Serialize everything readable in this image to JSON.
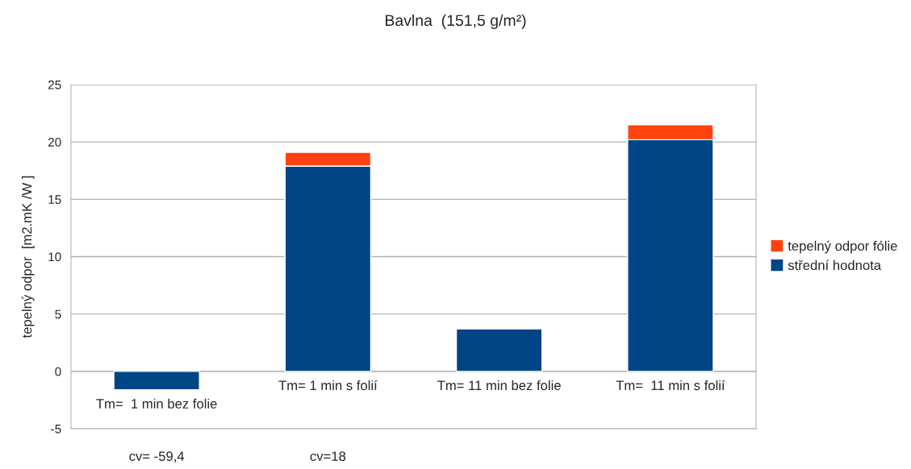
{
  "chart_data": {
    "type": "bar",
    "title": "Bavlna  (151,5 g/m²)",
    "ylabel": "tepelný odpor  [m2.mK /W ]",
    "categories": [
      "Tm=  1 min bez folie",
      "Tm= 1 min s folií",
      "Tm= 11 min bez folie",
      "Tm=  11 min s folií"
    ],
    "stacked": true,
    "series": [
      {
        "name": "střední hodnota",
        "color": "#004586",
        "values": [
          -1.6,
          17.9,
          3.7,
          20.2
        ]
      },
      {
        "name": "tepelný odpor fólie",
        "color": "#ff420e",
        "values": [
          null,
          1.2,
          null,
          1.3
        ]
      }
    ],
    "ylim": [
      -5,
      25
    ],
    "yticks": [
      -5,
      0,
      5,
      10,
      15,
      20,
      25
    ],
    "grid": "y",
    "legend": "right",
    "annotations": [
      "cv= -59,4",
      "cv=18"
    ]
  }
}
